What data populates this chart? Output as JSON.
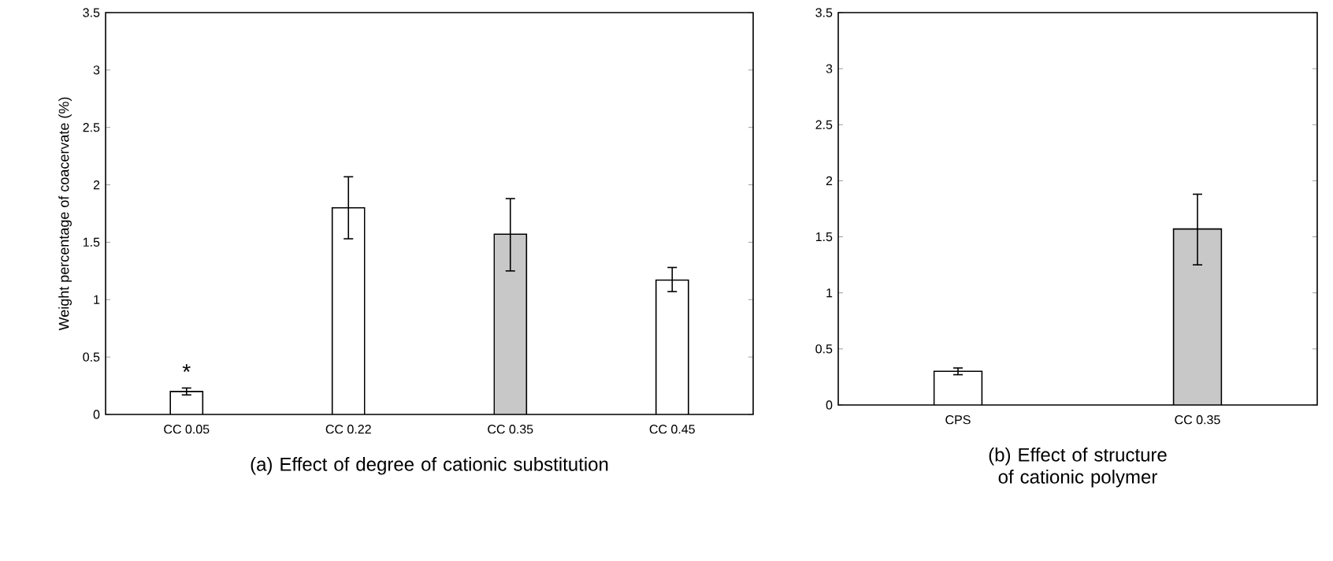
{
  "chart_data": [
    {
      "type": "bar",
      "xlabel": "(a) Effect of  degree of cationic substitution",
      "ylabel": "Weight percentage of coacervate (%)",
      "categories": [
        "CC 0.05",
        "CC 0.22",
        "CC 0.35",
        "CC 0.45"
      ],
      "values": [
        0.2,
        1.8,
        1.57,
        1.17
      ],
      "errors": [
        0.03,
        [
          1.53,
          2.07
        ],
        [
          1.25,
          1.88
        ],
        [
          1.07,
          1.28
        ]
      ],
      "colors": [
        "#ffffff",
        "#ffffff",
        "#c8c8c8",
        "#ffffff"
      ],
      "ylim": [
        0,
        3.5
      ],
      "yticks": [
        0,
        0.5,
        1,
        1.5,
        2,
        2.5,
        3,
        3.5
      ],
      "annotations": [
        "*"
      ]
    },
    {
      "type": "bar",
      "xlabel": "(b) Effect of structure of cationic polymer",
      "categories": [
        "CPS",
        "CC 0.35"
      ],
      "values": [
        0.3,
        1.57
      ],
      "errors": [
        0.03,
        [
          1.25,
          1.88
        ]
      ],
      "colors": [
        "#ffffff",
        "#c8c8c8"
      ],
      "ylim": [
        0,
        3.5
      ],
      "yticks": [
        0,
        0.5,
        1,
        1.5,
        2,
        2.5,
        3,
        3.5
      ]
    }
  ]
}
